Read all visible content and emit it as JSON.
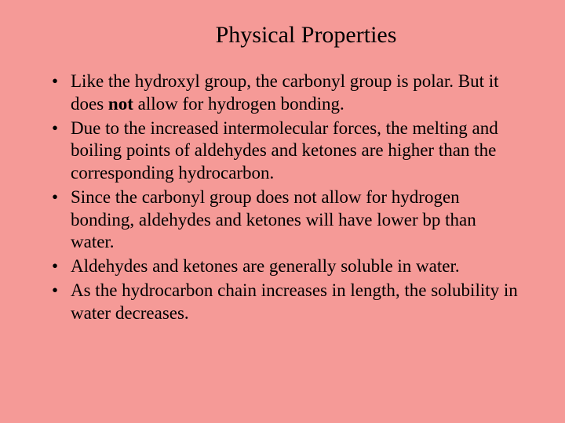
{
  "background_color": "#f59a97",
  "text_color": "#000000",
  "font_family": "Times New Roman",
  "title": {
    "text": "Physical Properties",
    "fontsize": 30,
    "align": "center"
  },
  "bullets": {
    "fontsize": 23,
    "items": [
      {
        "pre": "Like the hydroxyl group, the carbonyl group is polar. But it does ",
        "bold": "not",
        "post": " allow for hydrogen bonding."
      },
      {
        "pre": "Due to the increased intermolecular forces, the melting and boiling points of aldehydes and ketones are higher than the corresponding hydrocarbon.",
        "bold": "",
        "post": ""
      },
      {
        "pre": "Since the carbonyl group does not allow for hydrogen bonding, aldehydes and ketones will have lower bp than water.",
        "bold": "",
        "post": ""
      },
      {
        "pre": "Aldehydes and ketones are generally soluble in water.",
        "bold": "",
        "post": ""
      },
      {
        "pre": "As the hydrocarbon chain increases in length, the solubility in water decreases.",
        "bold": "",
        "post": ""
      }
    ]
  }
}
